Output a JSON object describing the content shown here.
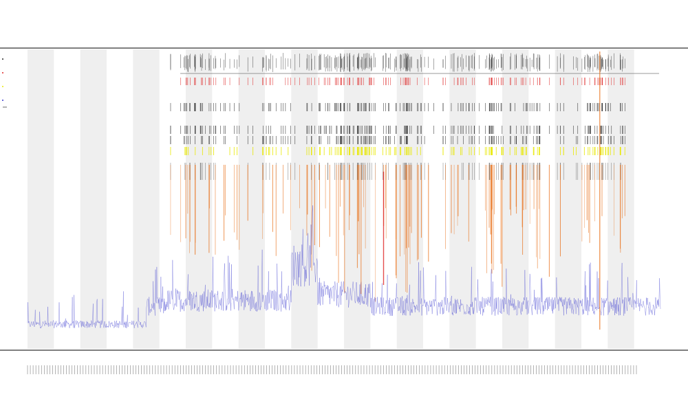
{
  "chart_data": {
    "type": "line",
    "title": "",
    "title_lines": [
      "",
      "",
      ""
    ],
    "xlabel": "",
    "ylabel": "",
    "grid": false,
    "legend": "top-left",
    "colors": {
      "baseline": "#3333cc",
      "orange": "#e8701a",
      "red": "#dd2222",
      "yellow": "#e8e800",
      "dark": "#222222",
      "band": "#efefef",
      "axis": "#555555"
    },
    "days": 24,
    "x_range": [
      0,
      960
    ],
    "baseline_series": {
      "name": "",
      "segments": [
        {
          "from": 0,
          "to": 180,
          "level": 0.02
        },
        {
          "from": 180,
          "to": 210,
          "level": 0.08
        },
        {
          "from": 210,
          "to": 400,
          "level": 0.1
        },
        {
          "from": 400,
          "to": 440,
          "level": 0.22
        },
        {
          "from": 440,
          "to": 520,
          "level": 0.12
        },
        {
          "from": 520,
          "to": 960,
          "level": 0.08
        }
      ]
    },
    "event_clusters": [
      {
        "center": 240,
        "width": 40,
        "density": 0.6
      },
      {
        "center": 295,
        "width": 60,
        "density": 0.5
      },
      {
        "center": 420,
        "width": 70,
        "density": 0.9
      },
      {
        "center": 480,
        "width": 40,
        "density": 0.6
      },
      {
        "center": 540,
        "width": 40,
        "density": 1.0
      },
      {
        "center": 610,
        "width": 70,
        "density": 0.6
      },
      {
        "center": 700,
        "width": 60,
        "density": 0.7
      },
      {
        "center": 760,
        "width": 60,
        "density": 0.8
      },
      {
        "center": 855,
        "width": 30,
        "density": 0.4
      },
      {
        "center": 880,
        "width": 30,
        "density": 0.6
      }
    ],
    "legend_entries": [
      "",
      "",
      "",
      ""
    ],
    "x_tick_count": 220
  }
}
